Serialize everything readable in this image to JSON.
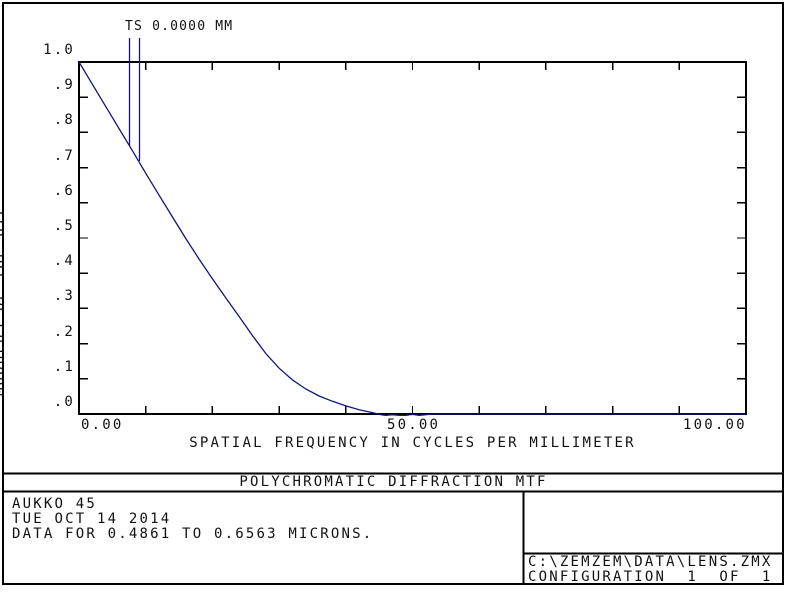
{
  "window": {
    "title_bar": "POLYCHROMATIC DIFFRACTION MTF",
    "info_box": {
      "lines": [
        "AUKKO 45",
        "TUE OCT 14 2014",
        "DATA FOR 0.4861 TO 0.6563 MICRONS."
      ]
    },
    "config_box": {
      "file_path": "C:\\ZEMZEM\\DATA\\LENS.ZMX",
      "configuration": "CONFIGURATION  1  OF  1"
    }
  },
  "legend": {
    "label": "TS 0.0000 MM"
  },
  "colors": {
    "curve": "#14147a",
    "axis": "#000000",
    "background": "#ffffff"
  },
  "chart_data": {
    "type": "line",
    "title": "POLYCHROMATIC DIFFRACTION MTF",
    "xlabel": "SPATIAL FREQUENCY IN CYCLES PER MILLIMETER",
    "ylabel": "MODULUS OF THE OTF",
    "xlim": [
      0,
      100
    ],
    "ylim": [
      0,
      1
    ],
    "grid": false,
    "legend_position": "top-left",
    "x_tick_labels": [
      "0.00",
      "50.00",
      "100.00"
    ],
    "x_minor_ticks": [
      10,
      20,
      30,
      40,
      50,
      60,
      70,
      80,
      90
    ],
    "y_ticks": [
      [
        1.0,
        "1.0"
      ],
      [
        0.9,
        ".9"
      ],
      [
        0.8,
        ".8"
      ],
      [
        0.7,
        ".7"
      ],
      [
        0.6,
        ".6"
      ],
      [
        0.5,
        ".5"
      ],
      [
        0.4,
        ".4"
      ],
      [
        0.3,
        ".3"
      ],
      [
        0.2,
        ".2"
      ],
      [
        0.1,
        ".1"
      ],
      [
        0.0,
        ".0"
      ]
    ],
    "series": [
      {
        "name": "TS 0.0000 MM",
        "color": "#14147a",
        "points": [
          [
            0,
            1.0
          ],
          [
            2,
            0.937
          ],
          [
            4,
            0.874
          ],
          [
            6,
            0.811
          ],
          [
            8,
            0.748
          ],
          [
            10,
            0.684
          ],
          [
            12,
            0.622
          ],
          [
            14,
            0.56
          ],
          [
            16,
            0.499
          ],
          [
            18,
            0.44
          ],
          [
            20,
            0.384
          ],
          [
            22,
            0.33
          ],
          [
            24,
            0.277
          ],
          [
            26,
            0.223
          ],
          [
            28,
            0.172
          ],
          [
            30,
            0.13
          ],
          [
            32,
            0.097
          ],
          [
            34,
            0.071
          ],
          [
            36,
            0.051
          ],
          [
            38,
            0.036
          ],
          [
            40,
            0.023
          ],
          [
            42,
            0.012
          ],
          [
            44,
            0.004
          ],
          [
            45,
            -0.001
          ],
          [
            46,
            -0.004
          ],
          [
            47,
            -0.002
          ],
          [
            48,
            -0.004
          ],
          [
            49,
            -0.004
          ],
          [
            50,
            -0.001
          ],
          [
            51,
            -0.004
          ],
          [
            52,
            -0.002
          ],
          [
            53,
            0.0
          ],
          [
            100,
            0.0
          ]
        ]
      }
    ]
  }
}
